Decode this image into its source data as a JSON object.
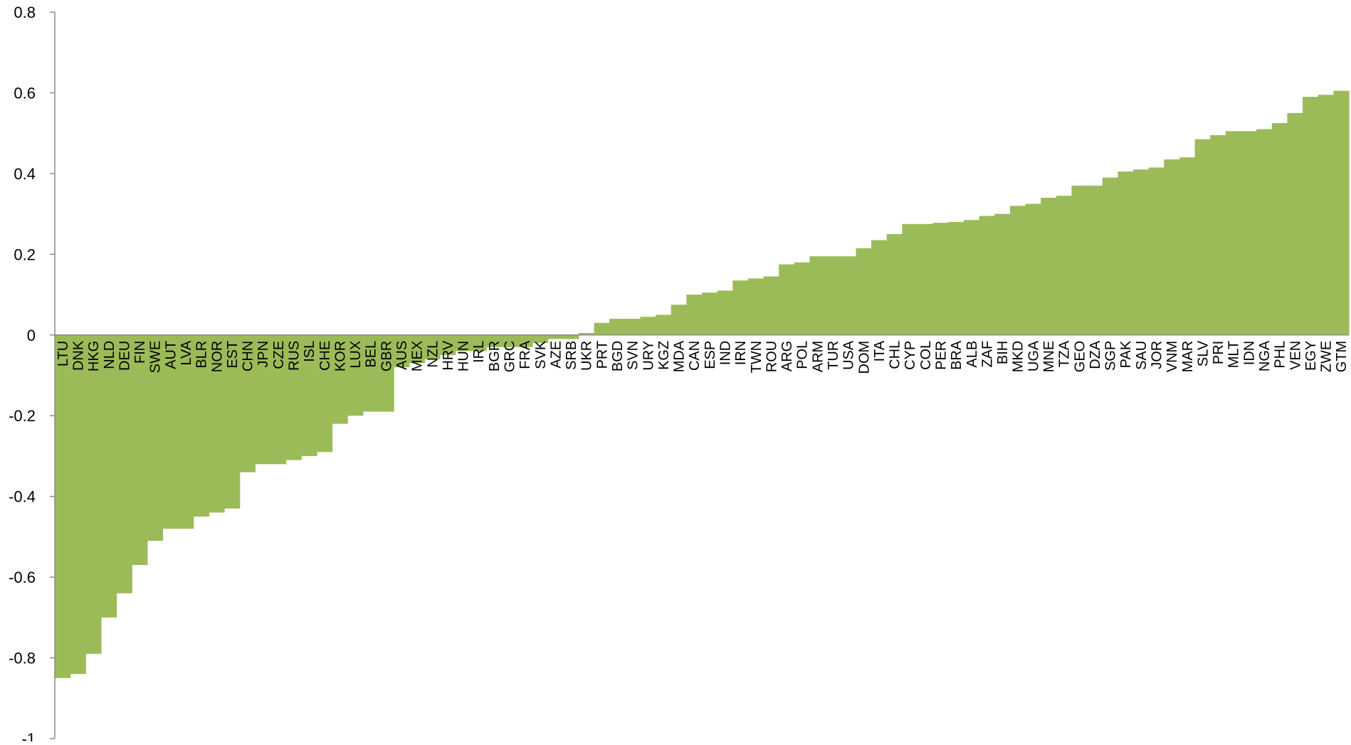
{
  "chart_data": {
    "type": "bar",
    "title": "",
    "xlabel": "",
    "ylabel": "",
    "ylim": [
      -1,
      0.8
    ],
    "yticks": [
      {
        "value": 0.8,
        "label": "0.8"
      },
      {
        "value": 0.6,
        "label": "0.6"
      },
      {
        "value": 0.4,
        "label": "0.4"
      },
      {
        "value": 0.2,
        "label": "0.2"
      },
      {
        "value": 0,
        "label": "0"
      },
      {
        "value": -0.2,
        "label": "-0.2"
      },
      {
        "value": -0.4,
        "label": "-0.4"
      },
      {
        "value": -0.6,
        "label": "-0.6"
      },
      {
        "value": -0.8,
        "label": "-0.8"
      },
      {
        "value": -1,
        "label": "-1"
      }
    ],
    "grid": false,
    "legend": "none",
    "bar_color": "#9BBB59",
    "categories": [
      "LTU",
      "DNK",
      "HKG",
      "NLD",
      "DEU",
      "FIN",
      "SWE",
      "AUT",
      "LVA",
      "BLR",
      "NOR",
      "EST",
      "CHN",
      "JPN",
      "CZE",
      "RUS",
      "ISL",
      "CHE",
      "KOR",
      "LUX",
      "BEL",
      "GBR",
      "AUS",
      "MEX",
      "NZL",
      "HRV",
      "HUN",
      "IRL",
      "BGR",
      "GRC",
      "FRA",
      "SVK",
      "AZE",
      "SRB",
      "UKR",
      "PRT",
      "BGD",
      "SVN",
      "URY",
      "KGZ",
      "MDA",
      "CAN",
      "ESP",
      "IND",
      "IRN",
      "TWN",
      "ROU",
      "ARG",
      "POL",
      "ARM",
      "TUR",
      "USA",
      "DOM",
      "ITA",
      "CHL",
      "CYP",
      "COL",
      "PER",
      "BRA",
      "ALB",
      "ZAF",
      "BIH",
      "MKD",
      "UGA",
      "MNE",
      "TZA",
      "GEO",
      "DZA",
      "SGP",
      "PAK",
      "SAU",
      "JOR",
      "VNM",
      "MAR",
      "SLV",
      "PRI",
      "MLT",
      "IDN",
      "NGA",
      "PHL",
      "VEN",
      "EGY",
      "ZWE",
      "GTM"
    ],
    "values": [
      -0.85,
      -0.84,
      -0.79,
      -0.7,
      -0.64,
      -0.57,
      -0.51,
      -0.48,
      -0.48,
      -0.45,
      -0.44,
      -0.43,
      -0.34,
      -0.32,
      -0.32,
      -0.31,
      -0.3,
      -0.29,
      -0.22,
      -0.2,
      -0.19,
      -0.19,
      -0.08,
      -0.07,
      -0.06,
      -0.05,
      -0.04,
      -0.04,
      -0.03,
      -0.03,
      -0.03,
      -0.02,
      -0.01,
      -0.01,
      0.005,
      0.03,
      0.04,
      0.04,
      0.045,
      0.05,
      0.075,
      0.1,
      0.105,
      0.11,
      0.135,
      0.14,
      0.145,
      0.175,
      0.18,
      0.195,
      0.195,
      0.195,
      0.215,
      0.235,
      0.25,
      0.275,
      0.275,
      0.278,
      0.28,
      0.285,
      0.295,
      0.3,
      0.32,
      0.325,
      0.34,
      0.345,
      0.37,
      0.37,
      0.39,
      0.405,
      0.41,
      0.415,
      0.435,
      0.44,
      0.485,
      0.495,
      0.505,
      0.505,
      0.51,
      0.525,
      0.55,
      0.59,
      0.595,
      0.605
    ]
  }
}
